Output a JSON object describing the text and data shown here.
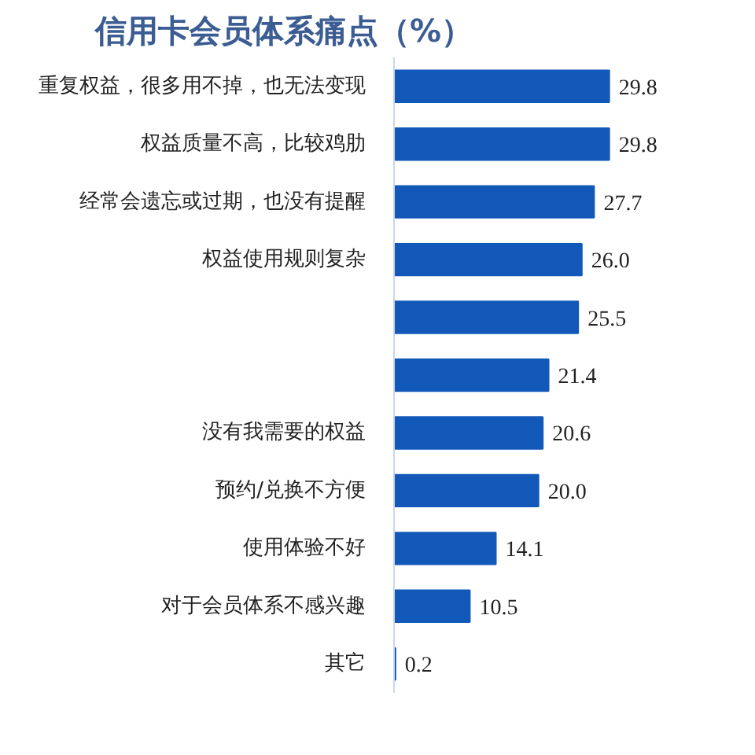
{
  "chart_data": {
    "type": "bar",
    "orientation": "horizontal",
    "title": "信用卡会员体系痛点（%）",
    "categories": [
      "重复权益，很多用不掉，也无法变现",
      "权益质量不高，比较鸡肋",
      "经常会遗忘或过期，也没有提醒",
      "权益使用规则复杂",
      null,
      null,
      "没有我需要的权益",
      "预约/兑换不方便",
      "使用体验不好",
      "对于会员体系不感兴趣",
      "其它"
    ],
    "values": [
      29.8,
      29.8,
      27.7,
      26.0,
      25.5,
      21.4,
      20.6,
      20.0,
      14.1,
      10.5,
      0.2
    ],
    "value_labels": [
      "29.8",
      "29.8",
      "27.7",
      "26.0",
      "25.5",
      "21.4",
      "20.6",
      "20.0",
      "14.1",
      "10.5",
      "0.2"
    ],
    "color": "#1258b8",
    "grid": false
  }
}
